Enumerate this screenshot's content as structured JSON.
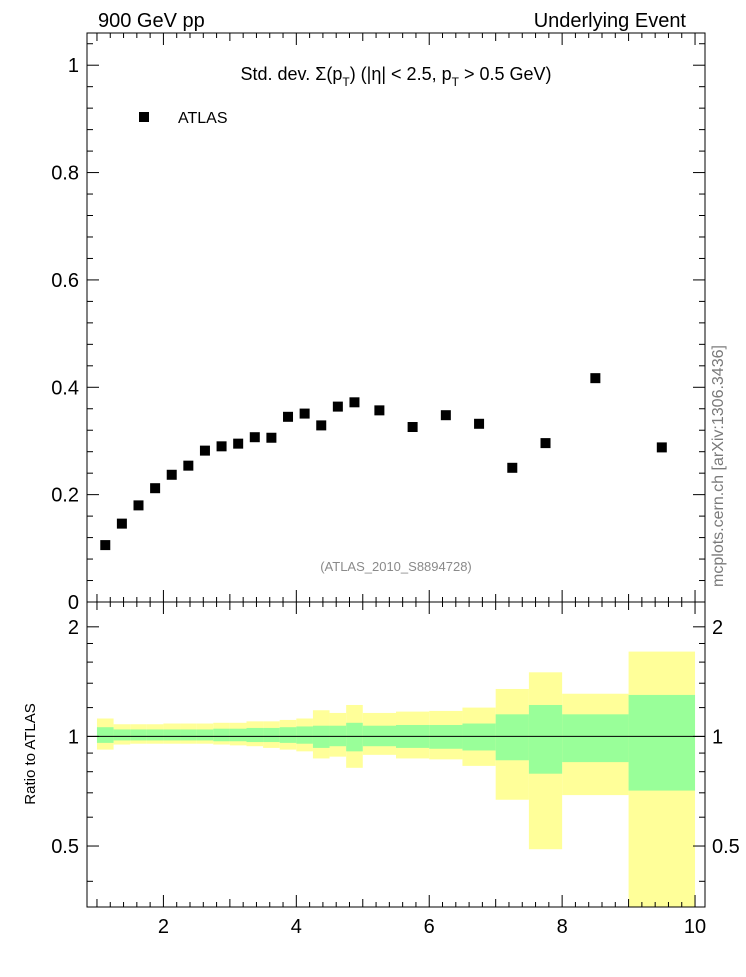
{
  "header": {
    "left": "900 GeV pp",
    "right": "Underlying Event"
  },
  "side_label": "mcplots.cern.ch [arXiv:1306.3436]",
  "chart_data": [
    {
      "type": "scatter",
      "title": "Std. dev. Σ(pT) (|η| < 2.5, pT > 0.5 GeV)",
      "title_parts": {
        "pre": "Std. dev. Σ(p",
        "sub1": "T",
        "mid": ") (|η| < 2.5, p",
        "sub2": "T",
        "post": " > 0.5 GeV)"
      },
      "watermark": "(ATLAS_2010_S8894728)",
      "legend": {
        "entries": [
          "ATLAS"
        ],
        "placement": "top-left"
      },
      "xlim": [
        0.85,
        10.15
      ],
      "ylim": [
        0,
        1.06
      ],
      "y_ticks": [
        0,
        0.2,
        0.4,
        0.6,
        0.8,
        1
      ],
      "y_tick_labels": [
        "0",
        "0.2",
        "0.4",
        "0.6",
        "0.8",
        "1"
      ],
      "series": [
        {
          "name": "ATLAS",
          "color": "#000000",
          "marker": "square",
          "x": [
            1.125,
            1.375,
            1.625,
            1.875,
            2.125,
            2.375,
            2.625,
            2.875,
            3.125,
            3.375,
            3.625,
            3.875,
            4.125,
            4.375,
            4.625,
            4.875,
            5.25,
            5.75,
            6.25,
            6.75,
            7.25,
            7.75,
            8.5,
            9.5
          ],
          "y": [
            0.106,
            0.146,
            0.18,
            0.212,
            0.237,
            0.254,
            0.282,
            0.29,
            0.295,
            0.307,
            0.306,
            0.345,
            0.351,
            0.329,
            0.364,
            0.372,
            0.357,
            0.326,
            0.348,
            0.332,
            0.25,
            0.296,
            0.417,
            0.288
          ]
        }
      ]
    },
    {
      "type": "area",
      "ylabel": "Ratio to ATLAS",
      "xlim": [
        0.85,
        10.15
      ],
      "ylim": [
        0.34,
        2.34
      ],
      "x_ticks": [
        2,
        4,
        6,
        8,
        10
      ],
      "x_tick_labels": [
        "2",
        "4",
        "6",
        "8",
        "10"
      ],
      "y_ticks": [
        0.5,
        1,
        2
      ],
      "y_tick_labels": [
        "0.5",
        "1",
        "2"
      ],
      "reference_line": 1,
      "bins": [
        {
          "lo": 1.0,
          "hi": 1.25,
          "g": [
            0.96,
            1.06
          ],
          "y": [
            0.92,
            1.12
          ]
        },
        {
          "lo": 1.25,
          "hi": 1.5,
          "g": [
            0.975,
            1.045
          ],
          "y": [
            0.95,
            1.08
          ]
        },
        {
          "lo": 1.5,
          "hi": 1.75,
          "g": [
            0.975,
            1.045
          ],
          "y": [
            0.955,
            1.08
          ]
        },
        {
          "lo": 1.75,
          "hi": 2.0,
          "g": [
            0.975,
            1.045
          ],
          "y": [
            0.955,
            1.08
          ]
        },
        {
          "lo": 2.0,
          "hi": 2.25,
          "g": [
            0.975,
            1.045
          ],
          "y": [
            0.955,
            1.085
          ]
        },
        {
          "lo": 2.25,
          "hi": 2.5,
          "g": [
            0.975,
            1.045
          ],
          "y": [
            0.955,
            1.085
          ]
        },
        {
          "lo": 2.5,
          "hi": 2.75,
          "g": [
            0.975,
            1.045
          ],
          "y": [
            0.955,
            1.085
          ]
        },
        {
          "lo": 2.75,
          "hi": 3.0,
          "g": [
            0.97,
            1.05
          ],
          "y": [
            0.95,
            1.09
          ]
        },
        {
          "lo": 3.0,
          "hi": 3.25,
          "g": [
            0.97,
            1.05
          ],
          "y": [
            0.945,
            1.09
          ]
        },
        {
          "lo": 3.25,
          "hi": 3.5,
          "g": [
            0.965,
            1.055
          ],
          "y": [
            0.94,
            1.1
          ]
        },
        {
          "lo": 3.5,
          "hi": 3.75,
          "g": [
            0.965,
            1.055
          ],
          "y": [
            0.93,
            1.1
          ]
        },
        {
          "lo": 3.75,
          "hi": 4.0,
          "g": [
            0.96,
            1.06
          ],
          "y": [
            0.92,
            1.11
          ]
        },
        {
          "lo": 4.0,
          "hi": 4.25,
          "g": [
            0.955,
            1.065
          ],
          "y": [
            0.91,
            1.12
          ]
        },
        {
          "lo": 4.25,
          "hi": 4.5,
          "g": [
            0.93,
            1.07
          ],
          "y": [
            0.87,
            1.18
          ]
        },
        {
          "lo": 4.5,
          "hi": 4.75,
          "g": [
            0.94,
            1.07
          ],
          "y": [
            0.88,
            1.16
          ]
        },
        {
          "lo": 4.75,
          "hi": 5.0,
          "g": [
            0.91,
            1.09
          ],
          "y": [
            0.82,
            1.22
          ]
        },
        {
          "lo": 5.0,
          "hi": 5.5,
          "g": [
            0.94,
            1.07
          ],
          "y": [
            0.89,
            1.16
          ]
        },
        {
          "lo": 5.5,
          "hi": 6.0,
          "g": [
            0.93,
            1.075
          ],
          "y": [
            0.87,
            1.17
          ]
        },
        {
          "lo": 6.0,
          "hi": 6.5,
          "g": [
            0.925,
            1.075
          ],
          "y": [
            0.865,
            1.175
          ]
        },
        {
          "lo": 6.5,
          "hi": 7.0,
          "g": [
            0.915,
            1.085
          ],
          "y": [
            0.83,
            1.2
          ]
        },
        {
          "lo": 7.0,
          "hi": 7.5,
          "g": [
            0.86,
            1.15
          ],
          "y": [
            0.67,
            1.35
          ]
        },
        {
          "lo": 7.5,
          "hi": 8.0,
          "g": [
            0.79,
            1.22
          ],
          "y": [
            0.49,
            1.5
          ]
        },
        {
          "lo": 8.0,
          "hi": 9.0,
          "g": [
            0.85,
            1.15
          ],
          "y": [
            0.69,
            1.31
          ]
        },
        {
          "lo": 9.0,
          "hi": 10.0,
          "g": [
            0.71,
            1.3
          ],
          "y": [
            0.34,
            1.71
          ]
        }
      ]
    }
  ]
}
